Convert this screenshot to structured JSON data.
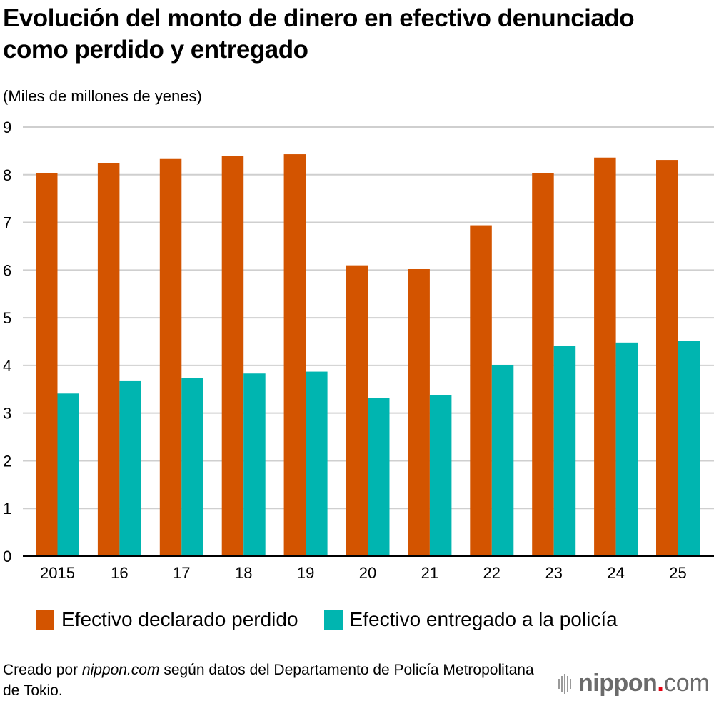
{
  "chart_data": {
    "type": "bar",
    "title": "Evolución del monto de dinero en efectivo denunciado como perdido y entregado",
    "ylabel": "(Miles de millones de yenes)",
    "xlabel": "",
    "categories": [
      "2015",
      "16",
      "17",
      "18",
      "19",
      "20",
      "21",
      "22",
      "23",
      "24",
      "25"
    ],
    "series": [
      {
        "name": "Efectivo declarado perdido",
        "color": "#d35400",
        "values": [
          8.03,
          8.25,
          8.33,
          8.4,
          8.43,
          6.1,
          6.02,
          6.94,
          8.03,
          8.36,
          8.31
        ]
      },
      {
        "name": "Efectivo entregado a la policía",
        "color": "#00b5b0",
        "values": [
          3.41,
          3.67,
          3.74,
          3.83,
          3.87,
          3.31,
          3.38,
          4.0,
          4.41,
          4.48,
          4.51
        ]
      }
    ],
    "ylim": [
      0,
      9
    ],
    "yticks": [
      "0",
      "1",
      "2",
      "3",
      "4",
      "5",
      "6",
      "7",
      "8",
      "9"
    ],
    "grid": true,
    "legend_position": "bottom"
  },
  "header": {
    "title": "Evolución del monto de dinero en efectivo denunciado como perdido y entregado",
    "unit_label": "(Miles de millones de yenes)"
  },
  "legend": [
    {
      "label": "Efectivo declarado perdido",
      "color": "#d35400"
    },
    {
      "label": "Efectivo entregado a la policía",
      "color": "#00b5b0"
    }
  ],
  "footer": {
    "source_prefix": "Creado por ",
    "source_site": "nippon.com",
    "source_suffix": " según datos del Departamento de Policía Metropolitana de Tokio.",
    "logo_name": "nippon",
    "logo_dot": ".",
    "logo_tld": "com"
  }
}
